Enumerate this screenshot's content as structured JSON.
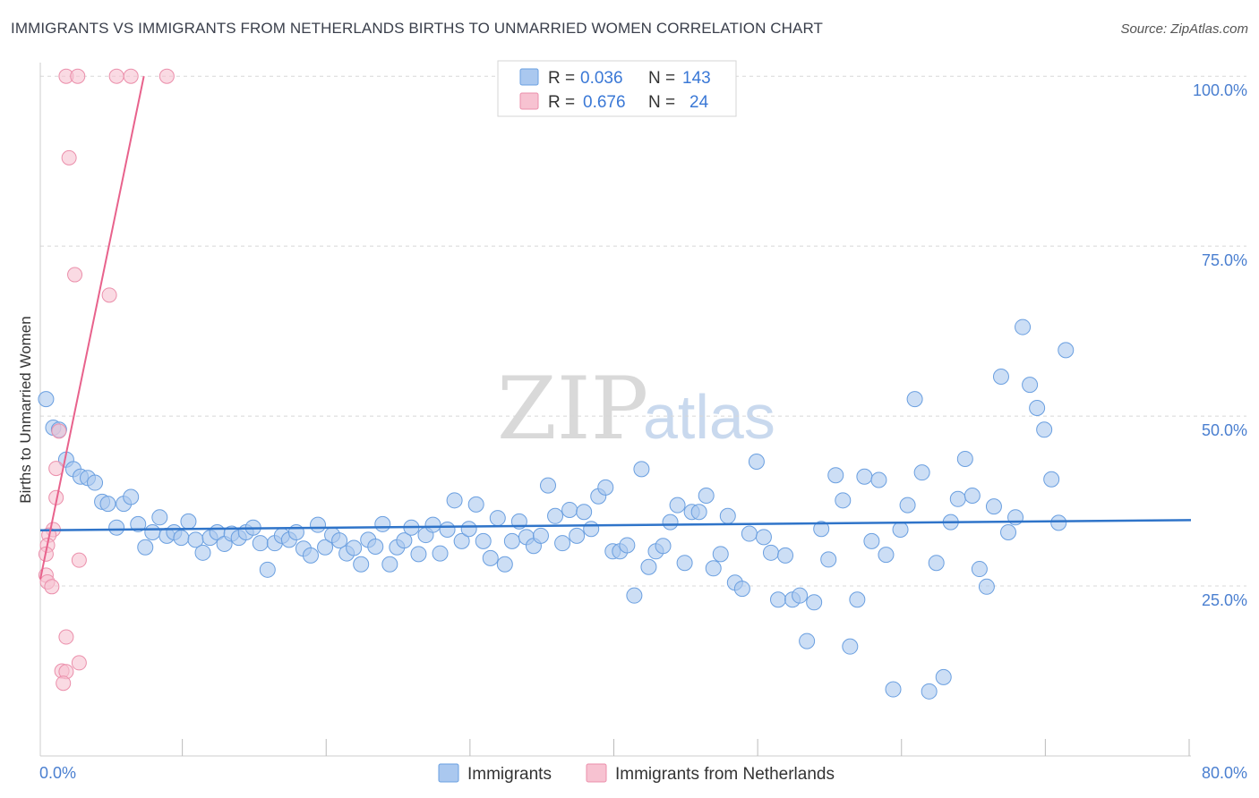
{
  "title": "IMMIGRANTS VS IMMIGRANTS FROM NETHERLANDS BIRTHS TO UNMARRIED WOMEN CORRELATION CHART",
  "source": "Source: ZipAtlas.com",
  "watermark": {
    "zip": "ZIP",
    "atlas": "atlas"
  },
  "colors": {
    "blue_fill": "#aac8ef",
    "blue_stroke": "#6a9fe0",
    "blue_line": "#2f74c9",
    "pink_fill": "#f7c2d1",
    "pink_stroke": "#eb8fab",
    "pink_line": "#e8628c",
    "tick_text": "#4a7fd0",
    "grid": "#d8d8d8"
  },
  "legend": {
    "rows": [
      {
        "r_label": "R =",
        "r_value": "0.036",
        "n_label": "N =",
        "n_value": "143"
      },
      {
        "r_label": "R =",
        "r_value": "0.676",
        "n_label": "N =",
        "n_value": "24"
      }
    ]
  },
  "chart_data": {
    "type": "scatter",
    "title": "IMMIGRANTS VS IMMIGRANTS FROM NETHERLANDS BIRTHS TO UNMARRIED WOMEN CORRELATION CHART",
    "xlabel": "",
    "ylabel": "Births to Unmarried Women",
    "xlim": [
      0,
      80
    ],
    "ylim": [
      0,
      102
    ],
    "x_tick_labels": {
      "left": "0.0%",
      "right": "80.0%"
    },
    "y_ticks": [
      25,
      50,
      75,
      100
    ],
    "y_tick_labels": [
      "25.0%",
      "50.0%",
      "75.0%",
      "100.0%"
    ],
    "grid": true,
    "legend_position": "top-center",
    "series": [
      {
        "name": "Immigrants",
        "color": "#aac8ef",
        "trend": {
          "x0": 0,
          "y0": 33.2,
          "x1": 80,
          "y1": 34.7
        },
        "points": [
          [
            0.4,
            52.5
          ],
          [
            0.9,
            48.3
          ],
          [
            1.3,
            48.0
          ],
          [
            1.8,
            43.6
          ],
          [
            2.3,
            42.2
          ],
          [
            2.8,
            41.1
          ],
          [
            3.3,
            40.9
          ],
          [
            3.8,
            40.2
          ],
          [
            4.3,
            37.4
          ],
          [
            4.7,
            37.1
          ],
          [
            5.3,
            33.6
          ],
          [
            5.8,
            37.1
          ],
          [
            6.3,
            38.1
          ],
          [
            6.8,
            34.1
          ],
          [
            7.3,
            30.7
          ],
          [
            7.8,
            32.9
          ],
          [
            8.3,
            35.1
          ],
          [
            8.8,
            32.4
          ],
          [
            9.3,
            32.9
          ],
          [
            9.8,
            32.1
          ],
          [
            10.3,
            34.5
          ],
          [
            10.8,
            31.8
          ],
          [
            11.3,
            29.9
          ],
          [
            11.8,
            32.1
          ],
          [
            12.3,
            32.9
          ],
          [
            12.8,
            31.2
          ],
          [
            13.3,
            32.7
          ],
          [
            13.8,
            32.1
          ],
          [
            14.3,
            32.9
          ],
          [
            14.8,
            33.6
          ],
          [
            15.3,
            31.3
          ],
          [
            15.8,
            27.4
          ],
          [
            16.3,
            31.3
          ],
          [
            16.8,
            32.4
          ],
          [
            17.3,
            31.8
          ],
          [
            17.8,
            32.9
          ],
          [
            18.3,
            30.5
          ],
          [
            18.8,
            29.5
          ],
          [
            19.3,
            34.0
          ],
          [
            19.8,
            30.7
          ],
          [
            20.3,
            32.5
          ],
          [
            20.8,
            31.7
          ],
          [
            21.3,
            29.8
          ],
          [
            21.8,
            30.6
          ],
          [
            22.3,
            28.2
          ],
          [
            22.8,
            31.8
          ],
          [
            23.3,
            30.8
          ],
          [
            23.8,
            34.1
          ],
          [
            24.3,
            28.2
          ],
          [
            24.8,
            30.7
          ],
          [
            25.3,
            31.7
          ],
          [
            25.8,
            33.6
          ],
          [
            26.3,
            29.7
          ],
          [
            26.8,
            32.5
          ],
          [
            27.3,
            34.0
          ],
          [
            27.8,
            29.8
          ],
          [
            28.3,
            33.3
          ],
          [
            28.8,
            37.6
          ],
          [
            29.3,
            31.6
          ],
          [
            29.8,
            33.4
          ],
          [
            30.3,
            37.0
          ],
          [
            30.8,
            31.6
          ],
          [
            31.3,
            29.1
          ],
          [
            31.8,
            35.0
          ],
          [
            32.3,
            28.2
          ],
          [
            32.8,
            31.6
          ],
          [
            33.3,
            34.5
          ],
          [
            33.8,
            32.2
          ],
          [
            34.3,
            30.9
          ],
          [
            34.8,
            32.4
          ],
          [
            35.3,
            39.8
          ],
          [
            35.8,
            35.3
          ],
          [
            36.3,
            31.3
          ],
          [
            36.8,
            36.2
          ],
          [
            37.3,
            32.4
          ],
          [
            37.8,
            35.9
          ],
          [
            38.3,
            33.4
          ],
          [
            38.8,
            38.2
          ],
          [
            39.3,
            39.5
          ],
          [
            39.8,
            30.1
          ],
          [
            40.3,
            30.1
          ],
          [
            40.8,
            31.0
          ],
          [
            41.3,
            23.6
          ],
          [
            41.8,
            42.2
          ],
          [
            42.3,
            27.8
          ],
          [
            42.8,
            30.1
          ],
          [
            43.3,
            30.9
          ],
          [
            43.8,
            34.4
          ],
          [
            44.3,
            36.9
          ],
          [
            44.8,
            28.4
          ],
          [
            45.3,
            35.9
          ],
          [
            45.8,
            35.9
          ],
          [
            46.3,
            38.3
          ],
          [
            46.8,
            27.6
          ],
          [
            47.3,
            29.7
          ],
          [
            47.8,
            35.3
          ],
          [
            48.3,
            25.5
          ],
          [
            48.8,
            24.6
          ],
          [
            49.3,
            32.7
          ],
          [
            49.8,
            43.3
          ],
          [
            50.3,
            32.2
          ],
          [
            50.8,
            29.9
          ],
          [
            51.3,
            23.0
          ],
          [
            51.8,
            29.5
          ],
          [
            52.3,
            23.0
          ],
          [
            52.8,
            23.6
          ],
          [
            53.3,
            16.9
          ],
          [
            53.8,
            22.6
          ],
          [
            54.3,
            33.4
          ],
          [
            54.8,
            28.9
          ],
          [
            55.3,
            41.3
          ],
          [
            55.8,
            37.6
          ],
          [
            56.3,
            16.1
          ],
          [
            56.8,
            23.0
          ],
          [
            57.3,
            41.1
          ],
          [
            57.8,
            31.6
          ],
          [
            58.3,
            40.6
          ],
          [
            58.8,
            29.6
          ],
          [
            59.3,
            9.8
          ],
          [
            59.8,
            33.3
          ],
          [
            60.3,
            36.9
          ],
          [
            60.8,
            52.5
          ],
          [
            61.3,
            41.7
          ],
          [
            61.8,
            9.5
          ],
          [
            62.3,
            28.4
          ],
          [
            62.8,
            11.6
          ],
          [
            63.3,
            34.4
          ],
          [
            63.8,
            37.8
          ],
          [
            64.3,
            43.7
          ],
          [
            64.8,
            38.3
          ],
          [
            65.3,
            27.5
          ],
          [
            65.8,
            24.9
          ],
          [
            66.3,
            36.7
          ],
          [
            66.8,
            55.8
          ],
          [
            67.3,
            32.9
          ],
          [
            67.8,
            35.1
          ],
          [
            68.3,
            63.1
          ],
          [
            68.8,
            54.6
          ],
          [
            69.3,
            51.2
          ],
          [
            69.8,
            48.0
          ],
          [
            70.3,
            40.7
          ],
          [
            70.8,
            34.3
          ],
          [
            71.3,
            59.7
          ]
        ]
      },
      {
        "name": "Immigrants from Netherlands",
        "color": "#f7c2d1",
        "trend": {
          "x0": 0,
          "y0": 26.0,
          "x1": 7.2,
          "y1": 100.0
        },
        "points": [
          [
            1.8,
            100
          ],
          [
            2.6,
            100
          ],
          [
            5.3,
            100
          ],
          [
            6.3,
            100
          ],
          [
            8.8,
            100
          ],
          [
            2.0,
            88.0
          ],
          [
            2.4,
            70.8
          ],
          [
            4.8,
            67.8
          ],
          [
            1.3,
            47.8
          ],
          [
            1.1,
            42.3
          ],
          [
            1.1,
            38.0
          ],
          [
            0.9,
            33.3
          ],
          [
            0.6,
            32.5
          ],
          [
            0.5,
            31.0
          ],
          [
            0.4,
            29.7
          ],
          [
            0.4,
            26.6
          ],
          [
            0.5,
            25.6
          ],
          [
            0.8,
            24.9
          ],
          [
            2.7,
            28.8
          ],
          [
            1.8,
            17.5
          ],
          [
            1.5,
            12.5
          ],
          [
            1.8,
            12.4
          ],
          [
            1.6,
            10.7
          ],
          [
            2.7,
            13.7
          ]
        ]
      }
    ]
  }
}
